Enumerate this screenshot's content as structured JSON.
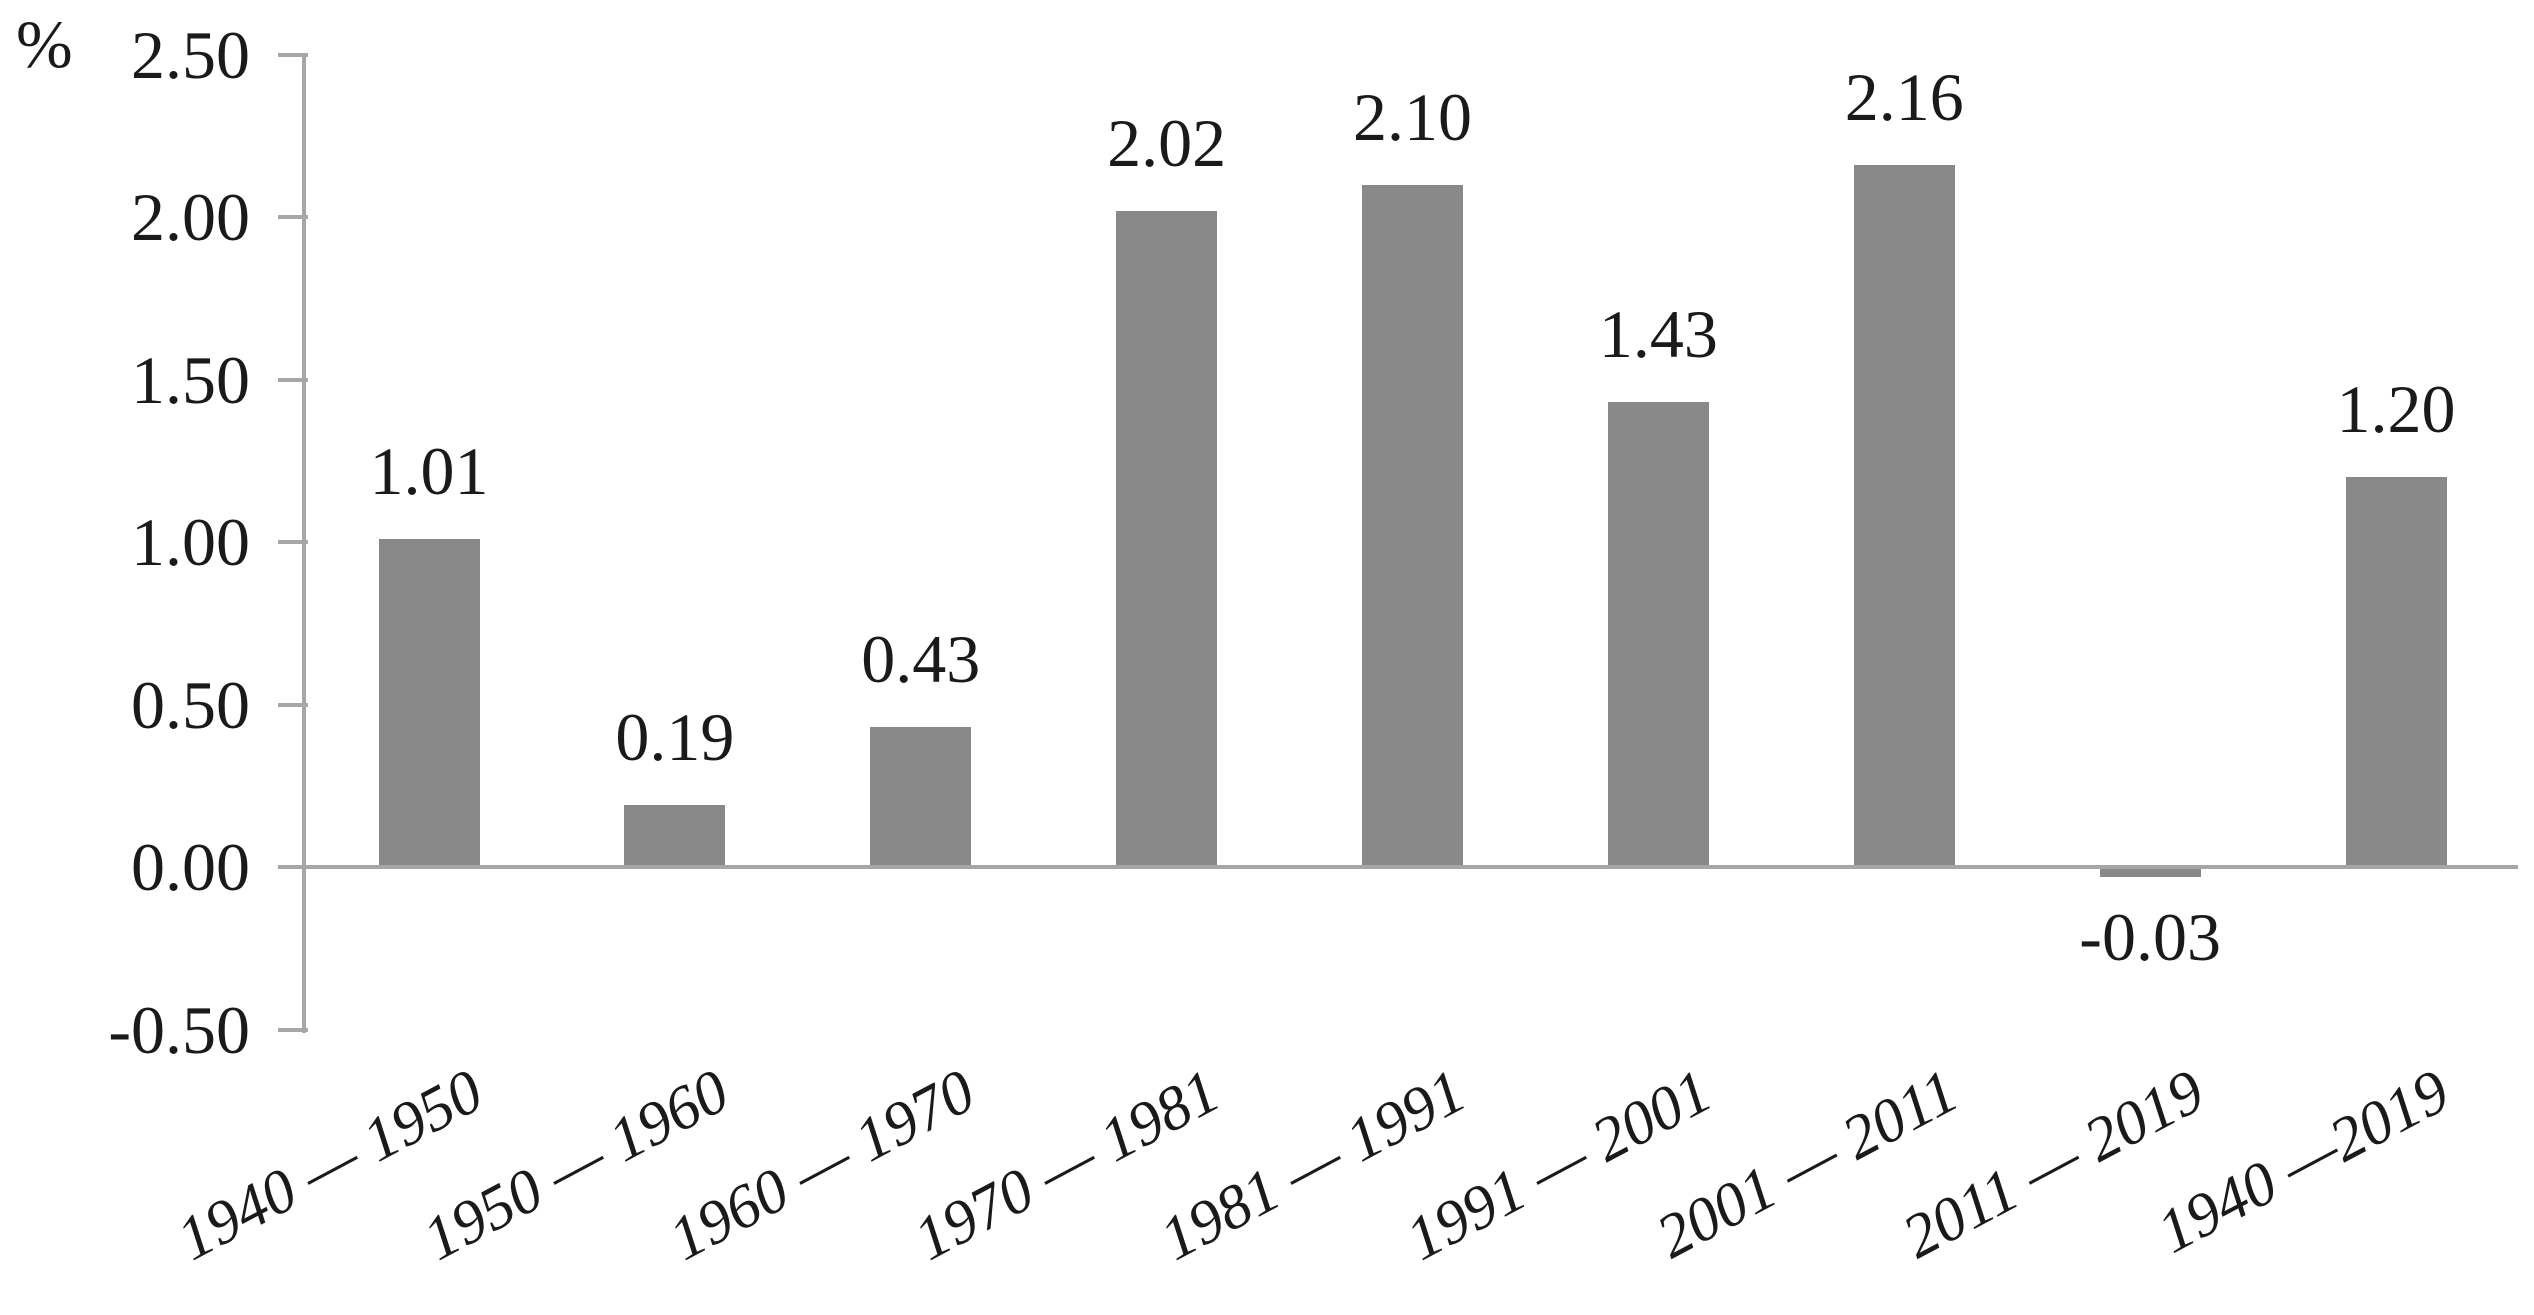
{
  "chart_data": {
    "type": "bar",
    "title": "",
    "ylabel": "%",
    "xlabel": "",
    "categories": [
      "1940 — 1950",
      "1950 — 1960",
      "1960 — 1970",
      "1970 — 1981",
      "1981 — 1991",
      "1991 — 2001",
      "2001 — 2011",
      "2011 — 2019",
      "1940 —2019"
    ],
    "values": [
      1.01,
      0.19,
      0.43,
      2.02,
      2.1,
      1.43,
      2.16,
      -0.03,
      1.2
    ],
    "data_labels": [
      "1.01",
      "0.19",
      "0.43",
      "2.02",
      "2.10",
      "1.43",
      "2.16",
      "-0.03",
      "1.20"
    ],
    "yticks": [
      2.5,
      2.0,
      1.5,
      1.0,
      0.5,
      0.0,
      -0.5
    ],
    "ytick_labels": [
      "2.50",
      "2.00",
      "1.50",
      "1.00",
      "0.50",
      "0.00",
      "-0.50"
    ],
    "ylim": [
      -0.5,
      2.5
    ],
    "grid": false,
    "legend": null,
    "bar_color": "#898989",
    "axis_color": "#a6a6a6",
    "text_color": "#1a1a1a",
    "background_color": "#ffffff"
  }
}
